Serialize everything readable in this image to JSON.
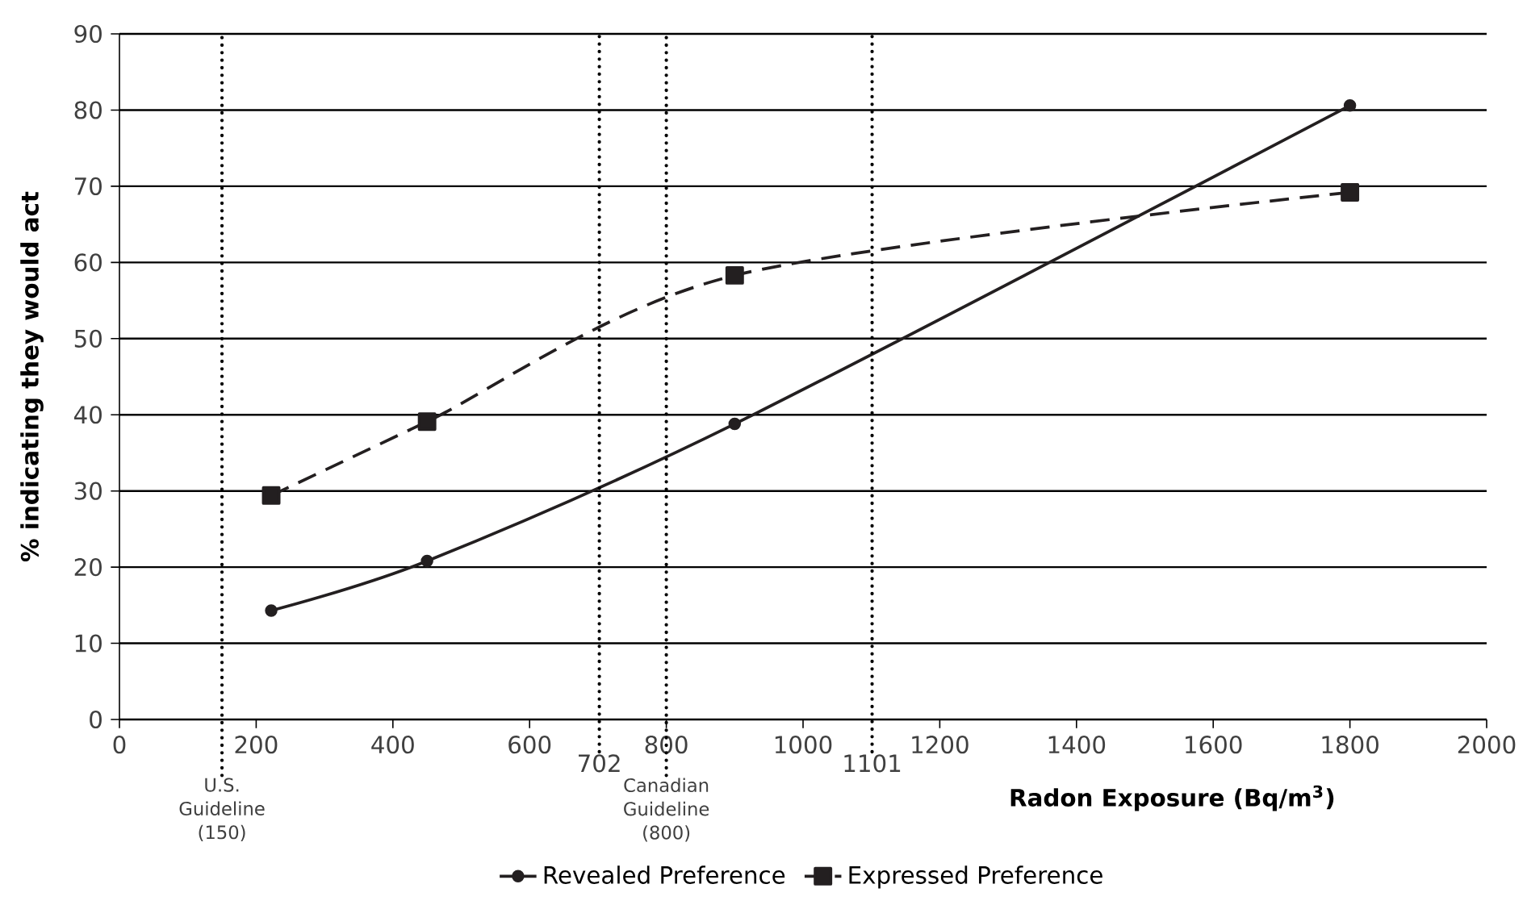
{
  "chart_data": {
    "type": "line",
    "xlabel": "Radon Exposure (Bq/m$^{3}$)",
    "ylabel": "% indicating they would act",
    "xlim": [
      0,
      2000
    ],
    "xticks": [
      0,
      200,
      400,
      600,
      800,
      1000,
      1200,
      1400,
      1600,
      1800,
      2000
    ],
    "ylim": [
      0,
      90
    ],
    "yticks": [
      0,
      10,
      20,
      30,
      40,
      50,
      60,
      70,
      80,
      90
    ],
    "grid": "y",
    "legend": "bottom",
    "series": [
      {
        "name": "Revealed Preference",
        "color": "#231f20",
        "marker": "circle",
        "line_style": "solid",
        "x": [
          222,
          450,
          900,
          1800
        ],
        "values": [
          14.3,
          20.8,
          38.8,
          80.6
        ]
      },
      {
        "name": "Expressed Preference",
        "color": "#231f20",
        "marker": "square",
        "line_style": "dashed",
        "x": [
          222,
          450,
          900,
          1800
        ],
        "values": [
          29.4,
          39.1,
          58.3,
          69.2
        ]
      }
    ],
    "ref_lines": [
      {
        "axis": "x",
        "value": 150,
        "label": "U.S. Guideline (150)",
        "line_style": "dotted"
      },
      {
        "axis": "x",
        "value": 702,
        "label": "702",
        "line_style": "dotted"
      },
      {
        "axis": "x",
        "value": 800,
        "label": "Canadian Guideline (800)",
        "line_style": "dotted"
      },
      {
        "axis": "x",
        "value": 1101,
        "label": "1101",
        "line_style": "dotted"
      }
    ]
  }
}
